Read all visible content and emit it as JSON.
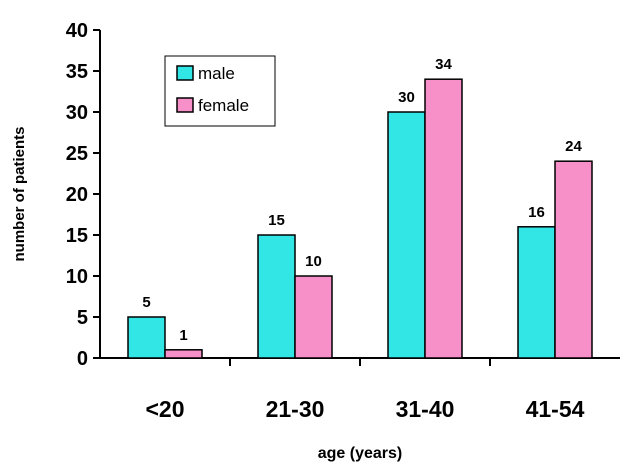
{
  "chart_data": {
    "type": "bar",
    "title": "",
    "xlabel": "age (years)",
    "ylabel": "number of patients",
    "categories": [
      "<20",
      "21-30",
      "31-40",
      "41-54"
    ],
    "series": [
      {
        "name": "male",
        "values": [
          5,
          15,
          30,
          16
        ],
        "color": "#33e6e6"
      },
      {
        "name": "female",
        "values": [
          1,
          10,
          34,
          24
        ],
        "color": "#f78fc8"
      }
    ],
    "ylim": [
      0,
      40
    ],
    "yticks": [
      0,
      5,
      10,
      15,
      20,
      25,
      30,
      35,
      40
    ],
    "grid": false,
    "legend": "top-left"
  }
}
